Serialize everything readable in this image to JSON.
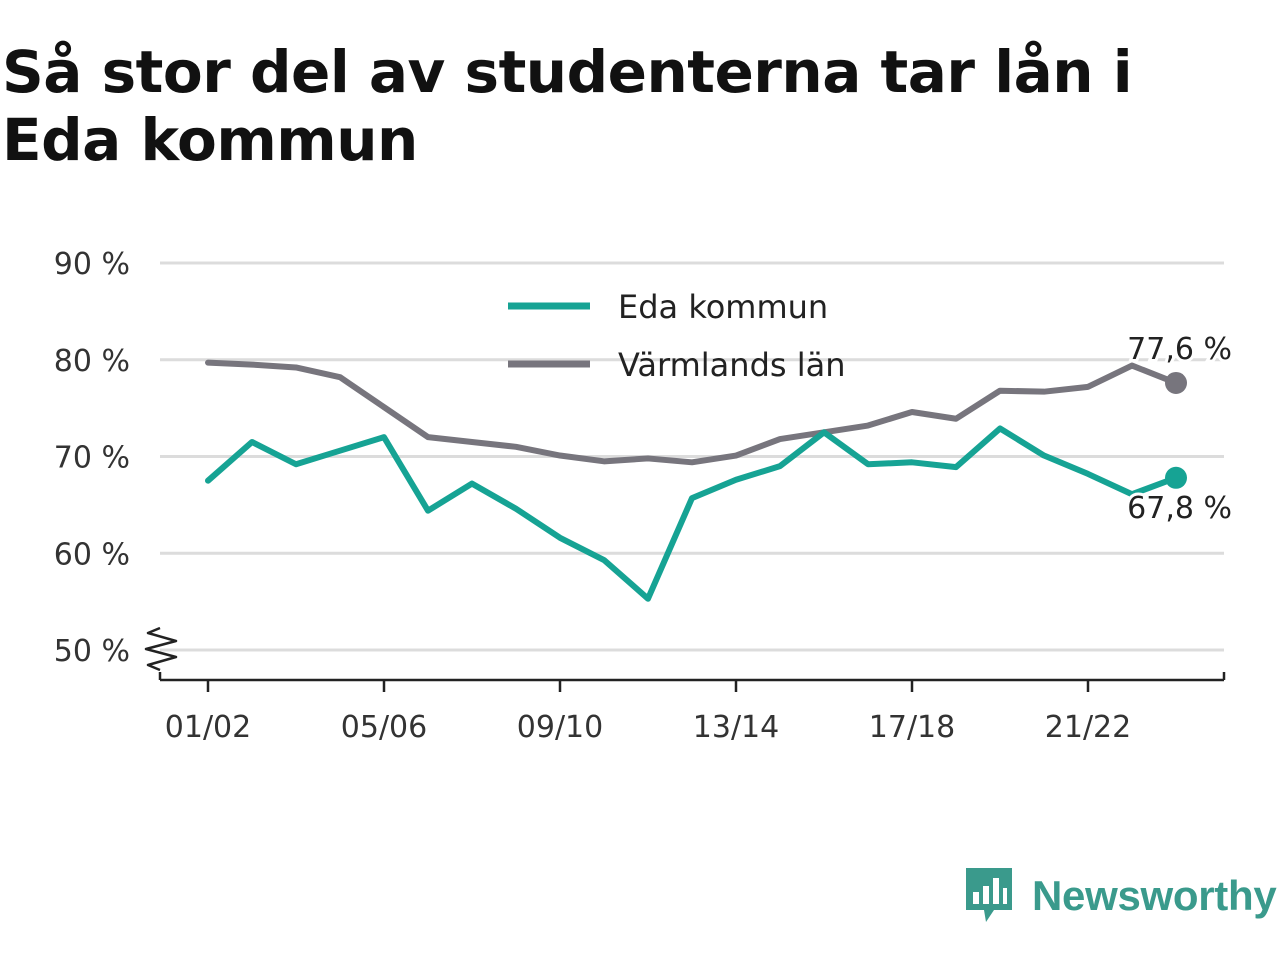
{
  "title": "Så stor del av studenterna tar lån i Eda kommun",
  "brand": {
    "name": "Newsworthy",
    "icon": "newsworthy-logo-icon",
    "color": "#3a9a8c"
  },
  "chart_data": {
    "type": "line",
    "title": "Så stor del av studenterna tar lån i Eda kommun",
    "xlabel": "",
    "ylabel": "",
    "x": [
      "01/02",
      "02/03",
      "03/04",
      "04/05",
      "05/06",
      "06/07",
      "07/08",
      "08/09",
      "09/10",
      "10/11",
      "11/12",
      "12/13",
      "13/14",
      "14/15",
      "15/16",
      "16/17",
      "17/18",
      "18/19",
      "19/20",
      "20/21",
      "21/22",
      "22/23",
      "23/24"
    ],
    "x_tick_labels": [
      "01/02",
      "05/06",
      "09/10",
      "13/14",
      "17/18",
      "21/22"
    ],
    "y_ticks": [
      50,
      60,
      70,
      80,
      90
    ],
    "y_tick_labels": [
      "50 %",
      "60 %",
      "70 %",
      "80 %",
      "90 %"
    ],
    "ylim": [
      50,
      90
    ],
    "y_axis_break": true,
    "grid": true,
    "legend_position": "top-center",
    "series": [
      {
        "name": "Eda kommun",
        "color": "#16a394",
        "values": [
          67.5,
          71.5,
          69.2,
          70.6,
          72.0,
          64.4,
          67.2,
          64.6,
          61.6,
          59.3,
          55.3,
          65.7,
          67.6,
          69.0,
          72.5,
          69.2,
          69.4,
          68.9,
          72.9,
          70.1,
          68.2,
          66.1,
          67.8
        ],
        "end_label": "67,8 %"
      },
      {
        "name": "Värmlands län",
        "color": "#77757d",
        "values": [
          79.7,
          79.5,
          79.2,
          78.2,
          75.1,
          72.0,
          71.5,
          71.0,
          70.1,
          69.5,
          69.8,
          69.4,
          70.1,
          71.8,
          72.5,
          73.2,
          74.6,
          73.9,
          76.8,
          76.7,
          77.2,
          79.4,
          77.6
        ],
        "end_label": "77,6 %"
      }
    ]
  }
}
